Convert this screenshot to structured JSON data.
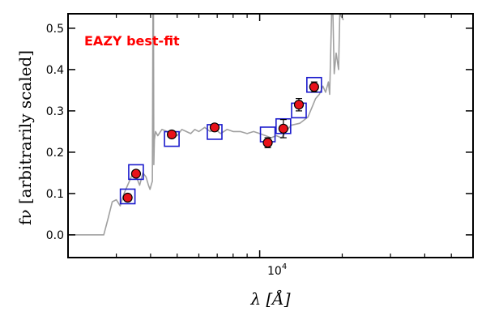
{
  "chart_data": {
    "type": "scatter",
    "title": "",
    "xlabel": "λ [Å]",
    "ylabel": "fν [arbitrarily scaled]",
    "xscale": "log",
    "xlim": [
      2000,
      60000
    ],
    "ylim": [
      -0.055,
      0.535
    ],
    "yticks": [
      0.0,
      0.1,
      0.2,
      0.3,
      0.4,
      0.5
    ],
    "ytick_labels": [
      "0.0",
      "0.1",
      "0.2",
      "0.3",
      "0.4",
      "0.5"
    ],
    "xticks_major": [
      10000
    ],
    "xtick_major_label_base": "10",
    "xtick_major_label_exp": "4",
    "xticks_minor": [
      3000,
      4000,
      5000,
      6000,
      7000,
      8000,
      9000,
      20000,
      30000,
      40000,
      50000,
      60000
    ],
    "annotation": "EAZY best-fit",
    "colors": {
      "model": "#a0a0a0",
      "model_photometry": "#1a1acc",
      "observed": "#e8121a",
      "observed_edge": "#000000",
      "annotation": "#ff0000"
    },
    "series": [
      {
        "name": "best-fit template",
        "kind": "line",
        "x": [
          2000,
          2700,
          2800,
          2900,
          3000,
          3100,
          3200,
          3350,
          3450,
          3550,
          3650,
          3750,
          3850,
          3930,
          3980,
          4020,
          4060,
          4080,
          4100,
          4110,
          4130,
          4170,
          4250,
          4400,
          4600,
          4800,
          5000,
          5200,
          5400,
          5600,
          5800,
          6000,
          6300,
          6600,
          6900,
          7200,
          7600,
          8000,
          8500,
          9000,
          9500,
          10000,
          10500,
          11000,
          11500,
          12000,
          12500,
          13000,
          14000,
          15000,
          16000,
          16500,
          17000,
          17400,
          17800,
          18000,
          18300,
          18500,
          18700,
          19000,
          19400,
          19600,
          19800,
          20200
        ],
        "y": [
          0.0,
          0.0,
          0.04,
          0.08,
          0.085,
          0.07,
          0.1,
          0.13,
          0.15,
          0.14,
          0.12,
          0.15,
          0.14,
          0.12,
          0.11,
          0.12,
          0.13,
          0.535,
          0.535,
          0.17,
          0.23,
          0.25,
          0.24,
          0.255,
          0.25,
          0.245,
          0.24,
          0.255,
          0.25,
          0.245,
          0.255,
          0.25,
          0.26,
          0.25,
          0.255,
          0.245,
          0.255,
          0.25,
          0.25,
          0.245,
          0.25,
          0.245,
          0.24,
          0.235,
          0.24,
          0.235,
          0.25,
          0.265,
          0.27,
          0.285,
          0.33,
          0.34,
          0.36,
          0.345,
          0.37,
          0.34,
          0.535,
          0.535,
          0.39,
          0.44,
          0.4,
          0.535,
          0.53,
          0.52
        ]
      },
      {
        "name": "template photometry",
        "kind": "open-square",
        "x": [
          3300,
          3540,
          4780,
          6850,
          10700,
          12200,
          13900,
          15800
        ],
        "y": [
          0.093,
          0.152,
          0.232,
          0.249,
          0.243,
          0.263,
          0.301,
          0.363
        ]
      },
      {
        "name": "observed photometry",
        "kind": "filled-circle-errorbar",
        "x": [
          3300,
          3540,
          4780,
          6850,
          10700,
          12200,
          13900,
          15800
        ],
        "y": [
          0.09,
          0.148,
          0.243,
          0.26,
          0.223,
          0.257,
          0.315,
          0.358
        ],
        "yerr": [
          0.006,
          0.006,
          0.006,
          0.006,
          0.012,
          0.022,
          0.015,
          0.012
        ]
      }
    ]
  }
}
